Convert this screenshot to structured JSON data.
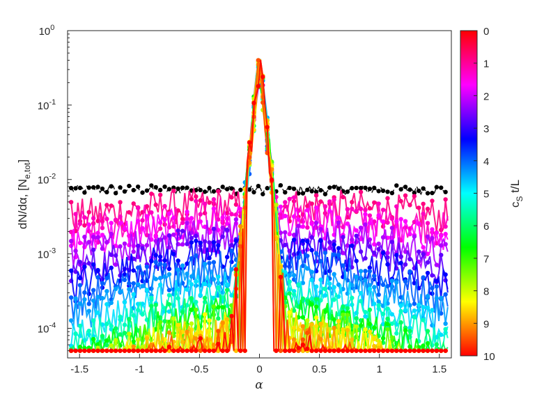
{
  "chart_data": {
    "type": "scatter",
    "title": "",
    "xlabel": "α",
    "ylabel": "dN/dα, [N",
    "ylabel_subscript": "e,tot",
    "ylabel_close": "]",
    "yscale": "log",
    "xlim": [
      -1.6,
      1.6
    ],
    "ylim": [
      4e-05,
      1
    ],
    "xticks": [
      -1.5,
      -1,
      -0.5,
      0,
      0.5,
      1,
      1.5
    ],
    "xtick_labels": [
      "-1.5",
      "-1",
      "-0.5",
      "0",
      "0.5",
      "1",
      "1.5"
    ],
    "yticks": [
      1,
      0.1,
      0.01,
      0.001,
      0.0001
    ],
    "ytick_labels": [
      {
        "base": "10",
        "exp": "0"
      },
      {
        "base": "10",
        "exp": "-1"
      },
      {
        "base": "10",
        "exp": "-2"
      },
      {
        "base": "10",
        "exp": "-3"
      },
      {
        "base": "10",
        "exp": "-4"
      }
    ],
    "floor_value": 5e-05,
    "peak_value": 0.4,
    "initial_level": 0.0072,
    "colorbar": {
      "label_main": "c",
      "label_sub": "S",
      "label_rest": " t/L",
      "range": [
        0,
        10
      ],
      "ticks": [
        "0",
        "1",
        "2",
        "3",
        "4",
        "5",
        "6",
        "7",
        "8",
        "9",
        "10"
      ],
      "colormap": "hsv-reversed",
      "colors": [
        "#ff0000",
        "#ff00ff",
        "#0000ff",
        "#00ffff",
        "#00ff00",
        "#ffff00",
        "#ff0000"
      ]
    },
    "series": [
      {
        "t": 0,
        "color": "#000000",
        "shape": "flat",
        "level": 0.0072,
        "linestyle": "dashed"
      },
      {
        "t": 0.5,
        "color": "#ff0080",
        "shape": "bell",
        "level": 0.0045,
        "width": 1.2
      },
      {
        "t": 1,
        "color": "#ff00c0",
        "shape": "bell",
        "level": 0.0035,
        "width": 0.9
      },
      {
        "t": 1.5,
        "color": "#ff00ff",
        "shape": "bell",
        "level": 0.0026,
        "width": 0.75
      },
      {
        "t": 2,
        "color": "#b000ff",
        "shape": "bell",
        "level": 0.0019,
        "width": 0.62
      },
      {
        "t": 2.5,
        "color": "#6000ff",
        "shape": "bell",
        "level": 0.0014,
        "width": 0.5
      },
      {
        "t": 3,
        "color": "#0000ff",
        "shape": "bell",
        "level": 0.001,
        "width": 0.42
      },
      {
        "t": 3.5,
        "color": "#0060ff",
        "shape": "bell",
        "level": 0.0007,
        "width": 0.34
      },
      {
        "t": 4,
        "color": "#00a0ff",
        "shape": "bell",
        "level": 0.0005,
        "width": 0.27
      },
      {
        "t": 4.5,
        "color": "#00e0ff",
        "shape": "bell",
        "level": 0.00035,
        "width": 0.22
      },
      {
        "t": 5,
        "color": "#00ffc0",
        "shape": "bell",
        "level": 0.00026,
        "width": 0.18
      },
      {
        "t": 5.5,
        "color": "#00ff60",
        "shape": "bell",
        "level": 0.0002,
        "width": 0.15
      },
      {
        "t": 6,
        "color": "#00ff00",
        "shape": "bell",
        "level": 0.00016,
        "width": 0.13
      },
      {
        "t": 6.5,
        "color": "#60ff00",
        "shape": "bell",
        "level": 0.00013,
        "width": 0.12
      },
      {
        "t": 7,
        "color": "#c0ff00",
        "shape": "bell",
        "level": 0.00012,
        "width": 0.11
      },
      {
        "t": 7.5,
        "color": "#ffff00",
        "shape": "bell",
        "level": 0.00011,
        "width": 0.1
      },
      {
        "t": 8,
        "color": "#ffe000",
        "shape": "bell",
        "level": 0.0001,
        "width": 0.09
      },
      {
        "t": 8.5,
        "color": "#ffc000",
        "shape": "bell",
        "level": 9e-05,
        "width": 0.08
      },
      {
        "t": 9,
        "color": "#ff9000",
        "shape": "bell",
        "level": 8e-05,
        "width": 0.07
      },
      {
        "t": 9.5,
        "color": "#ff5000",
        "shape": "bell",
        "level": 7e-05,
        "width": 0.06
      },
      {
        "t": 10,
        "color": "#ff0000",
        "shape": "bell",
        "level": 6e-05,
        "width": 0.05
      }
    ]
  }
}
